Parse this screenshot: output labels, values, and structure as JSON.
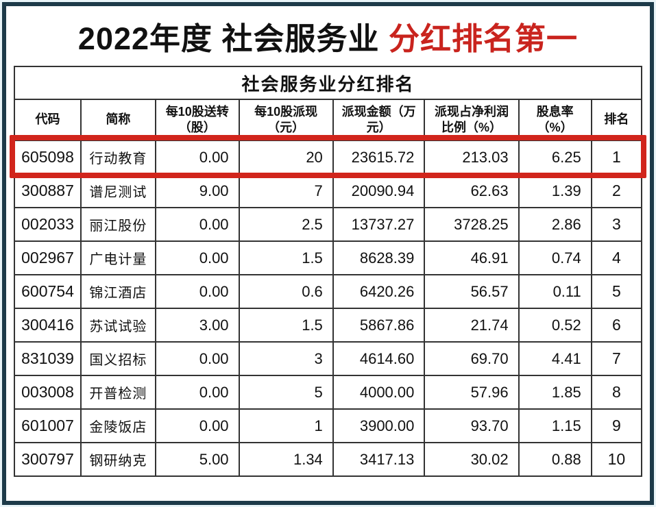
{
  "page_title": {
    "black_part": "2022年度 社会服务业 ",
    "red_part": "分红排名第一"
  },
  "colors": {
    "accent_red": "#c9241e",
    "highlight_border_red": "#d1251c",
    "frame_navy": "#1d3a49",
    "table_border": "#333333",
    "page_background": "#e9f4f8"
  },
  "chart_data": {
    "type": "table",
    "title": "社会服务业分红排名",
    "columns": [
      {
        "key": "code",
        "label": "代码"
      },
      {
        "key": "name",
        "label": "简称"
      },
      {
        "key": "send",
        "label": "每10股送转\n（股）"
      },
      {
        "key": "cash",
        "label": "每10股派现\n（元）"
      },
      {
        "key": "amount",
        "label": "派现金额（万\n元）"
      },
      {
        "key": "ratio",
        "label": "派现占净利润\n比例（%）"
      },
      {
        "key": "yield",
        "label": "股息率\n（%）"
      },
      {
        "key": "rank",
        "label": "排名"
      }
    ],
    "rows": [
      {
        "code": "605098",
        "name": "行动教育",
        "send": "0.00",
        "cash": "20",
        "amount": "23615.72",
        "ratio": "213.03",
        "yield": "6.25",
        "rank": "1",
        "highlighted": true
      },
      {
        "code": "300887",
        "name": "谱尼测试",
        "send": "9.00",
        "cash": "7",
        "amount": "20090.94",
        "ratio": "62.63",
        "yield": "1.39",
        "rank": "2",
        "highlighted": false
      },
      {
        "code": "002033",
        "name": "丽江股份",
        "send": "0.00",
        "cash": "2.5",
        "amount": "13737.27",
        "ratio": "3728.25",
        "yield": "2.86",
        "rank": "3",
        "highlighted": false
      },
      {
        "code": "002967",
        "name": "广电计量",
        "send": "0.00",
        "cash": "1.5",
        "amount": "8628.39",
        "ratio": "46.91",
        "yield": "0.74",
        "rank": "4",
        "highlighted": false
      },
      {
        "code": "600754",
        "name": "锦江酒店",
        "send": "0.00",
        "cash": "0.6",
        "amount": "6420.26",
        "ratio": "56.57",
        "yield": "0.11",
        "rank": "5",
        "highlighted": false
      },
      {
        "code": "300416",
        "name": "苏试试验",
        "send": "3.00",
        "cash": "1.5",
        "amount": "5867.86",
        "ratio": "21.74",
        "yield": "0.52",
        "rank": "6",
        "highlighted": false
      },
      {
        "code": "831039",
        "name": "国义招标",
        "send": "0.00",
        "cash": "3",
        "amount": "4614.60",
        "ratio": "69.70",
        "yield": "4.41",
        "rank": "7",
        "highlighted": false
      },
      {
        "code": "003008",
        "name": "开普检测",
        "send": "0.00",
        "cash": "5",
        "amount": "4000.00",
        "ratio": "57.96",
        "yield": "1.85",
        "rank": "8",
        "highlighted": false
      },
      {
        "code": "601007",
        "name": "金陵饭店",
        "send": "0.00",
        "cash": "1",
        "amount": "3900.00",
        "ratio": "93.70",
        "yield": "1.15",
        "rank": "9",
        "highlighted": false
      },
      {
        "code": "300797",
        "name": "钢研纳克",
        "send": "5.00",
        "cash": "1.34",
        "amount": "3417.13",
        "ratio": "30.02",
        "yield": "0.88",
        "rank": "10",
        "highlighted": false
      }
    ]
  }
}
